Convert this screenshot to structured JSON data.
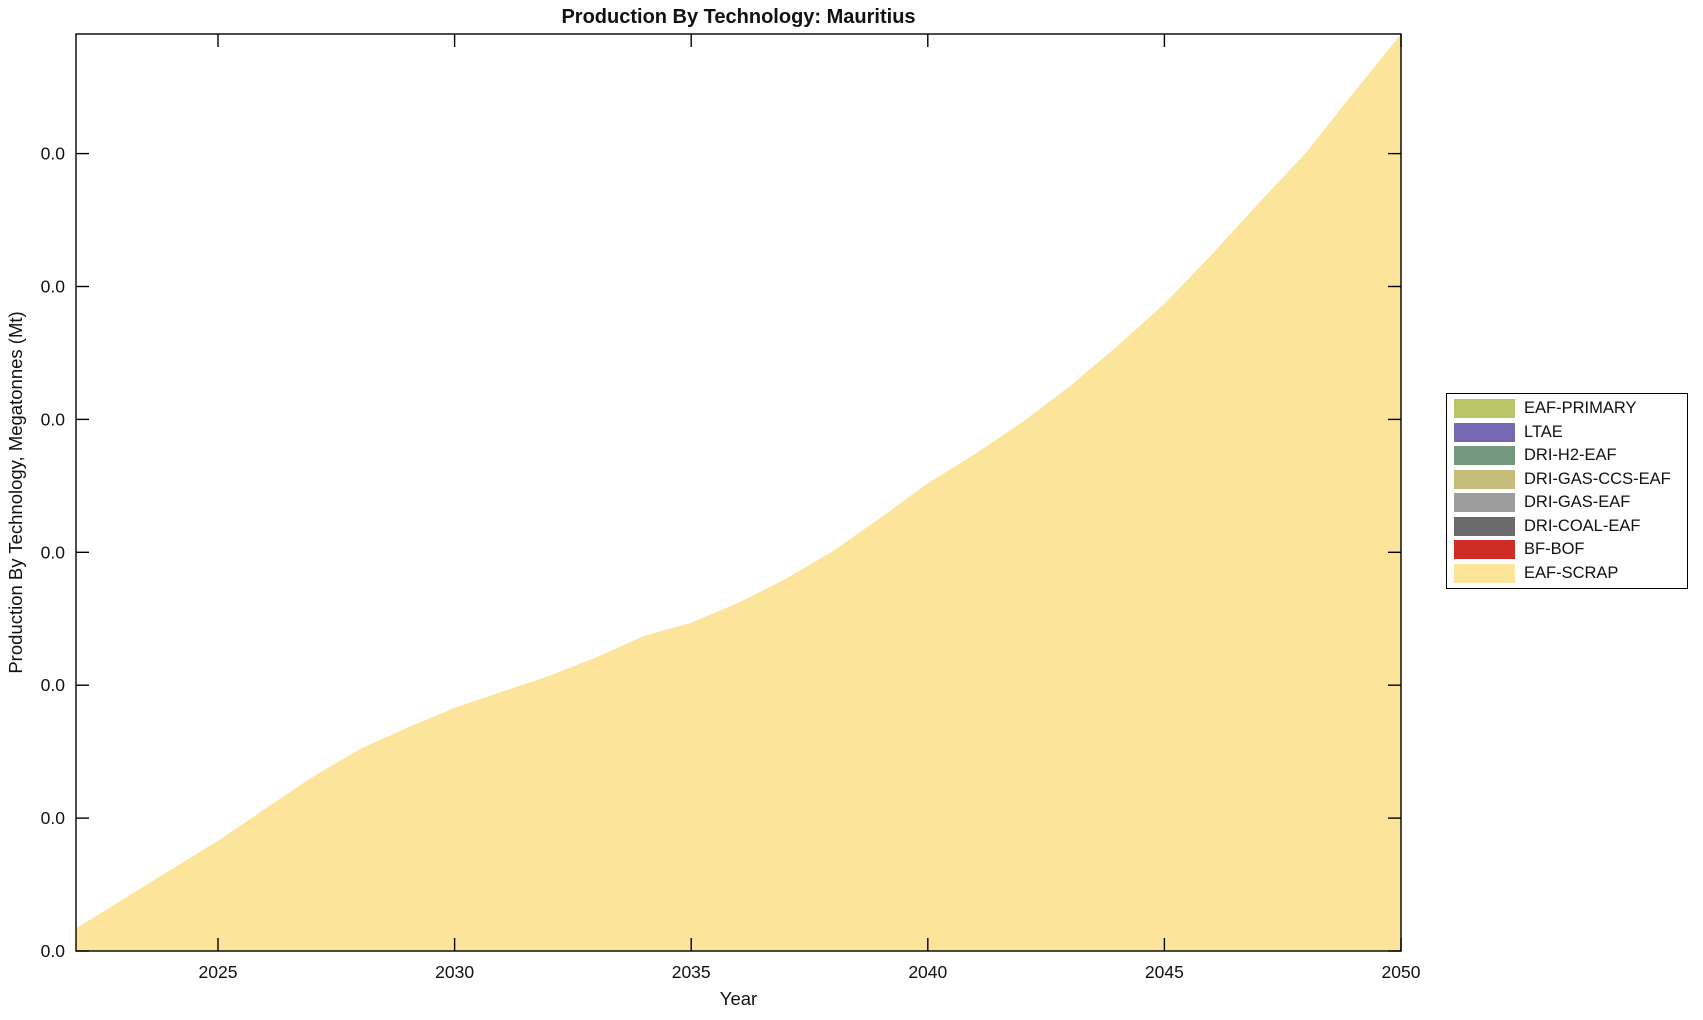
{
  "title": "Production By Technology: Mauritius",
  "axes": {
    "xlabel": "Year",
    "ylabel": "Production By Technology, Megatonnes (Mt)",
    "x_tick_labels": [
      "2025",
      "2030",
      "2035",
      "2040",
      "2045",
      "2050"
    ],
    "x_tick_years": [
      2025,
      2030,
      2035,
      2040,
      2045,
      2050
    ],
    "y_tick_labels": [
      "0.0",
      "0.0",
      "0.0",
      "0.0",
      "0.0",
      "0.0",
      "0.0"
    ],
    "y_ticks_tick_units": [
      0,
      1,
      2,
      3,
      4,
      5,
      6
    ]
  },
  "legend": {
    "items": [
      {
        "label": "EAF-PRIMARY",
        "color": "#b9c566"
      },
      {
        "label": "LTAE",
        "color": "#7569b5"
      },
      {
        "label": "DRI-H2-EAF",
        "color": "#75997e"
      },
      {
        "label": "DRI-GAS-CCS-EAF",
        "color": "#c5bc79"
      },
      {
        "label": "DRI-GAS-EAF",
        "color": "#9c9c9c"
      },
      {
        "label": "DRI-COAL-EAF",
        "color": "#6b6b6b"
      },
      {
        "label": "BF-BOF",
        "color": "#d02b24"
      },
      {
        "label": "EAF-SCRAP",
        "color": "#fce49b"
      }
    ]
  },
  "chart_data": {
    "type": "area",
    "stacked": true,
    "title": "Production By Technology: Mauritius",
    "xlabel": "Year",
    "ylabel": "Production By Technology, Megatonnes (Mt)",
    "x": [
      2022,
      2023,
      2024,
      2025,
      2026,
      2027,
      2028,
      2029,
      2030,
      2031,
      2032,
      2033,
      2034,
      2035,
      2036,
      2037,
      2038,
      2039,
      2040,
      2041,
      2042,
      2043,
      2044,
      2045,
      2046,
      2047,
      2048,
      2049,
      2050
    ],
    "xlim": [
      2022,
      2050
    ],
    "ylim_tick_units": [
      0,
      6.9
    ],
    "values_unit": "y-axis tick intervals (each tick renders as 0.0)",
    "grid": false,
    "legend_position": "outside-right",
    "series": [
      {
        "name": "EAF-PRIMARY",
        "color": "#b9c566",
        "values": [
          0,
          0,
          0,
          0,
          0,
          0,
          0,
          0,
          0,
          0,
          0,
          0,
          0,
          0,
          0,
          0,
          0,
          0,
          0,
          0,
          0,
          0,
          0,
          0,
          0,
          0,
          0,
          0,
          0
        ]
      },
      {
        "name": "LTAE",
        "color": "#7569b5",
        "values": [
          0,
          0,
          0,
          0,
          0,
          0,
          0,
          0,
          0,
          0,
          0,
          0,
          0,
          0,
          0,
          0,
          0,
          0,
          0,
          0,
          0,
          0,
          0,
          0,
          0,
          0,
          0,
          0,
          0
        ]
      },
      {
        "name": "DRI-H2-EAF",
        "color": "#75997e",
        "values": [
          0,
          0,
          0,
          0,
          0,
          0,
          0,
          0,
          0,
          0,
          0,
          0,
          0,
          0,
          0,
          0,
          0,
          0,
          0,
          0,
          0,
          0,
          0,
          0,
          0,
          0,
          0,
          0,
          0
        ]
      },
      {
        "name": "DRI-GAS-CCS-EAF",
        "color": "#c5bc79",
        "values": [
          0,
          0,
          0,
          0,
          0,
          0,
          0,
          0,
          0,
          0,
          0,
          0,
          0,
          0,
          0,
          0,
          0,
          0,
          0,
          0,
          0,
          0,
          0,
          0,
          0,
          0,
          0,
          0,
          0
        ]
      },
      {
        "name": "DRI-GAS-EAF",
        "color": "#9c9c9c",
        "values": [
          0,
          0,
          0,
          0,
          0,
          0,
          0,
          0,
          0,
          0,
          0,
          0,
          0,
          0,
          0,
          0,
          0,
          0,
          0,
          0,
          0,
          0,
          0,
          0,
          0,
          0,
          0,
          0,
          0
        ]
      },
      {
        "name": "DRI-COAL-EAF",
        "color": "#6b6b6b",
        "values": [
          0,
          0,
          0,
          0,
          0,
          0,
          0,
          0,
          0,
          0,
          0,
          0,
          0,
          0,
          0,
          0,
          0,
          0,
          0,
          0,
          0,
          0,
          0,
          0,
          0,
          0,
          0,
          0,
          0
        ]
      },
      {
        "name": "BF-BOF",
        "color": "#d02b24",
        "values": [
          0,
          0,
          0,
          0,
          0,
          0,
          0,
          0,
          0,
          0,
          0,
          0,
          0,
          0,
          0,
          0,
          0,
          0,
          0,
          0,
          0,
          0,
          0,
          0,
          0,
          0,
          0,
          0,
          0
        ]
      },
      {
        "name": "EAF-SCRAP",
        "color": "#fce49b",
        "values": [
          0.17,
          0.39,
          0.61,
          0.83,
          1.07,
          1.31,
          1.52,
          1.68,
          1.83,
          1.95,
          2.07,
          2.21,
          2.37,
          2.47,
          2.62,
          2.8,
          3.01,
          3.26,
          3.52,
          3.74,
          3.98,
          4.25,
          4.55,
          4.87,
          5.24,
          5.63,
          6.01,
          6.46,
          6.9
        ]
      }
    ]
  },
  "style": {
    "axis_color": "#000000",
    "text_color": "#111111",
    "plot_bg": "#ffffff"
  }
}
